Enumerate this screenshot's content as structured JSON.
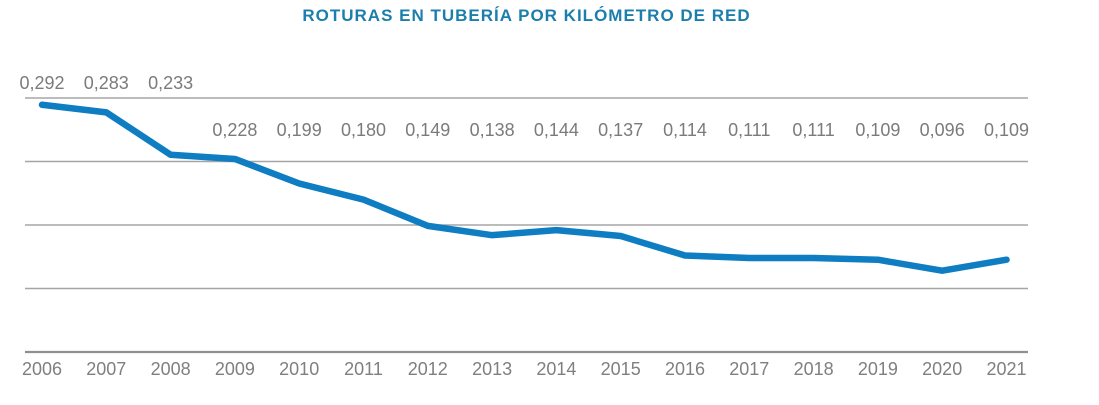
{
  "title": "ROTURAS EN TUBERÍA POR KILÓMETRO DE RED",
  "chart_data": {
    "type": "line",
    "title": "ROTURAS EN TUBERÍA POR KILÓMETRO DE RED",
    "categories": [
      "2006",
      "2007",
      "2008",
      "2009",
      "2010",
      "2011",
      "2012",
      "2013",
      "2014",
      "2015",
      "2016",
      "2017",
      "2018",
      "2019",
      "2020",
      "2021"
    ],
    "values": [
      0.292,
      0.283,
      0.233,
      0.228,
      0.199,
      0.18,
      0.149,
      0.138,
      0.144,
      0.137,
      0.114,
      0.111,
      0.111,
      0.109,
      0.096,
      0.109
    ],
    "value_labels": [
      "0,292",
      "0,283",
      "0,233",
      "0,228",
      "0,199",
      "0,180",
      "0,149",
      "0,138",
      "0,144",
      "0,137",
      "0,114",
      "0,111",
      "0,111",
      "0,109",
      "0,096",
      "0,109"
    ],
    "xlabel": "",
    "ylabel": "",
    "ylim": [
      0,
      0.3
    ],
    "gridline_values": [
      0,
      0.075,
      0.15,
      0.225,
      0.3
    ],
    "grid": "horizontal-only",
    "legend": "none",
    "y_axis_tick_labels": "none",
    "colors": {
      "line": "#0f7dc2",
      "title": "#1b7eac",
      "value_label": "#7b7b7b",
      "axis_label": "#7f7f7f",
      "gridline": "#a5a5a5",
      "axis_line": "#8f8f8f",
      "background": "#ffffff"
    }
  }
}
